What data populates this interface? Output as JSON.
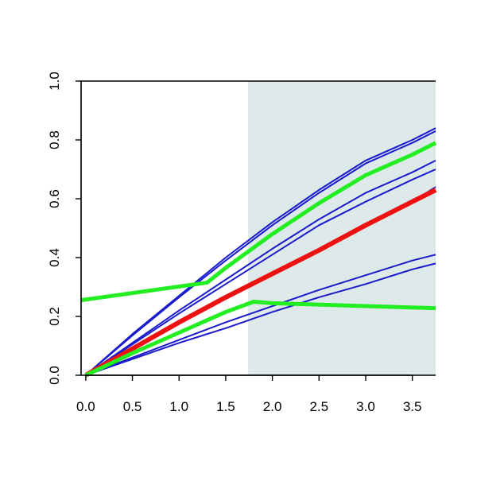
{
  "chart_data": {
    "type": "line",
    "title": "",
    "xlabel": "",
    "ylabel": "",
    "xlim": [
      -0.05,
      3.75
    ],
    "ylim": [
      0,
      1.0
    ],
    "x_ticks": [
      "0.0",
      "0.5",
      "1.0",
      "1.5",
      "2.0",
      "2.5",
      "3.0",
      "3.5"
    ],
    "y_ticks": [
      "0.0",
      "0.2",
      "0.4",
      "0.6",
      "0.8",
      "1.0"
    ],
    "shaded_region": {
      "x_start": 1.74,
      "x_end": 3.75,
      "color": "#deeaea"
    },
    "grid": false,
    "legend": "none",
    "series": [
      {
        "color": "#1a1acd",
        "width": 2,
        "points": [
          [
            0,
            0
          ],
          [
            0.5,
            0.14
          ],
          [
            1.0,
            0.27
          ],
          [
            1.5,
            0.4
          ],
          [
            2.0,
            0.52
          ],
          [
            2.5,
            0.63
          ],
          [
            3.0,
            0.73
          ],
          [
            3.5,
            0.8
          ],
          [
            3.75,
            0.84
          ]
        ]
      },
      {
        "color": "#1a1acd",
        "width": 2,
        "points": [
          [
            0,
            0
          ],
          [
            0.5,
            0.135
          ],
          [
            1.0,
            0.265
          ],
          [
            1.5,
            0.39
          ],
          [
            2.0,
            0.51
          ],
          [
            2.5,
            0.62
          ],
          [
            3.0,
            0.72
          ],
          [
            3.5,
            0.79
          ],
          [
            3.75,
            0.83
          ]
        ]
      },
      {
        "color": "#1a1acd",
        "width": 2,
        "points": [
          [
            0,
            0
          ],
          [
            0.5,
            0.11
          ],
          [
            1.0,
            0.22
          ],
          [
            1.5,
            0.325
          ],
          [
            2.0,
            0.43
          ],
          [
            2.5,
            0.53
          ],
          [
            3.0,
            0.62
          ],
          [
            3.5,
            0.69
          ],
          [
            3.75,
            0.73
          ]
        ]
      },
      {
        "color": "#1a1acd",
        "width": 2,
        "points": [
          [
            0,
            0
          ],
          [
            0.5,
            0.105
          ],
          [
            1.0,
            0.21
          ],
          [
            1.5,
            0.31
          ],
          [
            2.0,
            0.41
          ],
          [
            2.5,
            0.51
          ],
          [
            3.0,
            0.59
          ],
          [
            3.5,
            0.665
          ],
          [
            3.75,
            0.7
          ]
        ]
      },
      {
        "color": "#1a1acd",
        "width": 2,
        "points": [
          [
            0,
            0
          ],
          [
            0.5,
            0.09
          ],
          [
            1.0,
            0.18
          ],
          [
            1.5,
            0.265
          ],
          [
            2.0,
            0.35
          ],
          [
            2.5,
            0.43
          ],
          [
            3.0,
            0.51
          ],
          [
            3.5,
            0.59
          ],
          [
            3.75,
            0.64
          ]
        ]
      },
      {
        "color": "#1a1acd",
        "width": 2,
        "points": [
          [
            0,
            0
          ],
          [
            0.5,
            0.06
          ],
          [
            1.0,
            0.12
          ],
          [
            1.5,
            0.18
          ],
          [
            2.0,
            0.235
          ],
          [
            2.5,
            0.29
          ],
          [
            3.0,
            0.34
          ],
          [
            3.5,
            0.39
          ],
          [
            3.75,
            0.41
          ]
        ]
      },
      {
        "color": "#1a1acd",
        "width": 2,
        "points": [
          [
            0,
            0
          ],
          [
            0.5,
            0.055
          ],
          [
            1.0,
            0.11
          ],
          [
            1.5,
            0.16
          ],
          [
            2.0,
            0.215
          ],
          [
            2.5,
            0.265
          ],
          [
            3.0,
            0.31
          ],
          [
            3.5,
            0.36
          ],
          [
            3.75,
            0.38
          ]
        ]
      },
      {
        "color": "#ee1111",
        "width": 6,
        "points": [
          [
            0,
            0
          ],
          [
            0.5,
            0.09
          ],
          [
            1.0,
            0.18
          ],
          [
            1.5,
            0.265
          ],
          [
            2.0,
            0.345
          ],
          [
            2.5,
            0.425
          ],
          [
            3.0,
            0.51
          ],
          [
            3.5,
            0.59
          ],
          [
            3.75,
            0.63
          ]
        ]
      },
      {
        "color": "#22ee22",
        "width": 5,
        "points": [
          [
            -0.05,
            0.255
          ],
          [
            1.3,
            0.315
          ],
          [
            1.5,
            0.365
          ],
          [
            2.0,
            0.48
          ],
          [
            2.5,
            0.585
          ],
          [
            3.0,
            0.68
          ],
          [
            3.5,
            0.75
          ],
          [
            3.75,
            0.79
          ]
        ]
      },
      {
        "color": "#22ee22",
        "width": 5,
        "points": [
          [
            0,
            0
          ],
          [
            0.5,
            0.075
          ],
          [
            1.0,
            0.145
          ],
          [
            1.5,
            0.215
          ],
          [
            1.8,
            0.25
          ],
          [
            2.0,
            0.245
          ],
          [
            3.0,
            0.235
          ],
          [
            3.75,
            0.228
          ]
        ]
      }
    ]
  }
}
